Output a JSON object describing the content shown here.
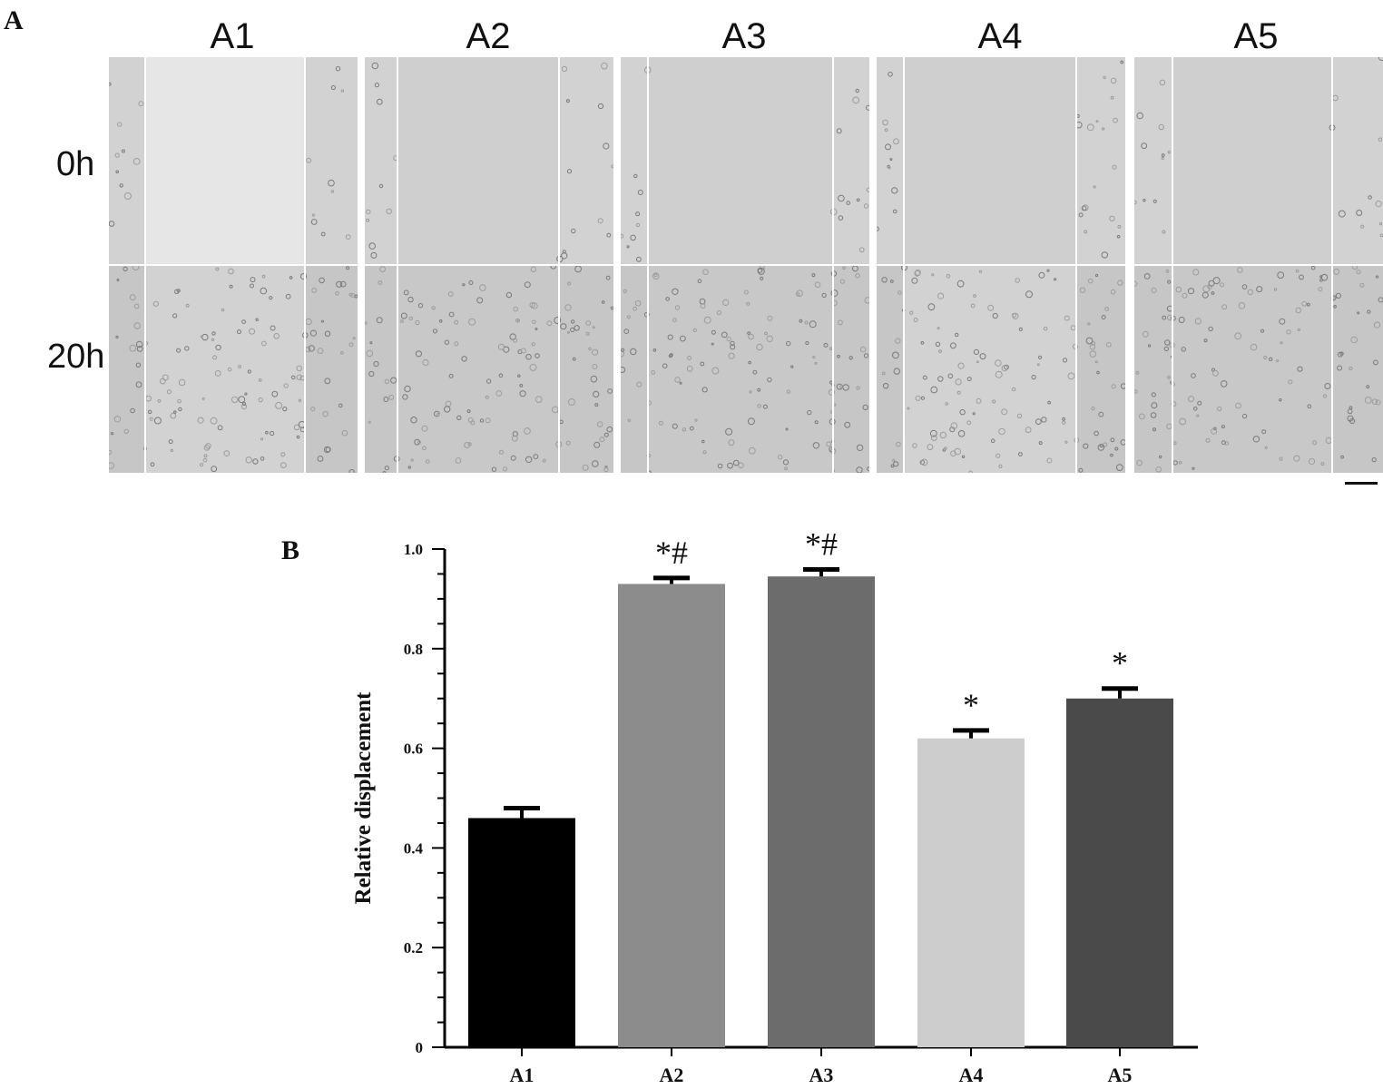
{
  "panel_a": {
    "letter": "A",
    "columns": [
      "A1",
      "A2",
      "A3",
      "A4",
      "A5"
    ],
    "rows": [
      "0h",
      "20h"
    ],
    "image_tone": "#c8c8c8",
    "cell_texture": "cell-dense",
    "gap_tone": "#d6d6d6"
  },
  "panel_b": {
    "letter": "B"
  },
  "chart_data": {
    "type": "bar",
    "categories": [
      "A1",
      "A2",
      "A3",
      "A4",
      "A5"
    ],
    "values": [
      0.46,
      0.93,
      0.945,
      0.62,
      0.7
    ],
    "errors": [
      0.02,
      0.012,
      0.014,
      0.016,
      0.02
    ],
    "annotations": [
      "",
      "*#",
      "*#",
      "*",
      "*"
    ],
    "colors": [
      "#000000",
      "#8c8c8c",
      "#6c6c6c",
      "#cdcdcd",
      "#4a4a4a"
    ],
    "ylabel": "Relative  displacement",
    "xlabel": "",
    "title": "",
    "ylim": [
      0,
      1.0
    ],
    "yticks": [
      0,
      0.2,
      0.4,
      0.6,
      0.8,
      1.0
    ],
    "ytick_labels": [
      "0",
      "0.2",
      "0.4",
      "0.6",
      "0.8",
      "1.0"
    ],
    "grid": false
  }
}
